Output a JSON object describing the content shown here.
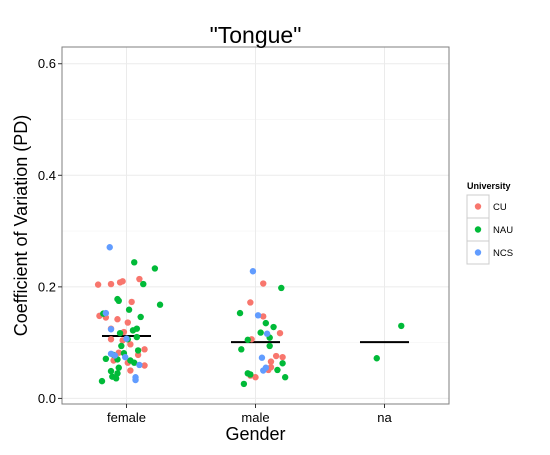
{
  "chart_data": {
    "type": "scatter",
    "title": "\"Tongue\"",
    "xlabel": "Gender",
    "ylabel": "Coefficient of Variation (PD)",
    "categories": [
      "female",
      "male",
      "na"
    ],
    "ylim": [
      -0.01,
      0.63
    ],
    "y_ticks": [
      0.0,
      0.2,
      0.4,
      0.6
    ],
    "y_tick_labels": [
      "0.0",
      "0.2",
      "0.4",
      "0.6"
    ],
    "grid": true,
    "legend": {
      "title": "University",
      "position": "right",
      "entries": [
        "CU",
        "NAU",
        "NCS"
      ]
    },
    "colors": {
      "CU": "#f8766d",
      "NAU": "#00ba38",
      "NCS": "#619cff",
      "panel_border": "#7f7f7f",
      "grid_major": "#ebebeb",
      "grid_minor": "#f5f5f5",
      "summary_line": "#000000"
    },
    "summary": [
      {
        "category": "female",
        "value": 0.112
      },
      {
        "category": "male",
        "value": 0.101
      },
      {
        "category": "na",
        "value": 0.101
      }
    ],
    "series": [
      {
        "name": "CU",
        "points": [
          {
            "x": "female",
            "jitter": -0.22,
            "y": 0.204
          },
          {
            "x": "female",
            "jitter": -0.12,
            "y": 0.205
          },
          {
            "x": "female",
            "jitter": -0.05,
            "y": 0.208
          },
          {
            "x": "female",
            "jitter": -0.03,
            "y": 0.21
          },
          {
            "x": "female",
            "jitter": 0.1,
            "y": 0.214
          },
          {
            "x": "female",
            "jitter": 0.04,
            "y": 0.173
          },
          {
            "x": "female",
            "jitter": -0.21,
            "y": 0.148
          },
          {
            "x": "female",
            "jitter": -0.16,
            "y": 0.145
          },
          {
            "x": "female",
            "jitter": -0.07,
            "y": 0.142
          },
          {
            "x": "female",
            "jitter": 0.01,
            "y": 0.136
          },
          {
            "x": "female",
            "jitter": -0.12,
            "y": 0.125
          },
          {
            "x": "female",
            "jitter": -0.02,
            "y": 0.119
          },
          {
            "x": "female",
            "jitter": -0.12,
            "y": 0.106
          },
          {
            "x": "female",
            "jitter": -0.03,
            "y": 0.104
          },
          {
            "x": "female",
            "jitter": 0.03,
            "y": 0.097
          },
          {
            "x": "female",
            "jitter": 0.14,
            "y": 0.088
          },
          {
            "x": "female",
            "jitter": -0.06,
            "y": 0.082
          },
          {
            "x": "female",
            "jitter": 0.09,
            "y": 0.078
          },
          {
            "x": "female",
            "jitter": -0.1,
            "y": 0.068
          },
          {
            "x": "female",
            "jitter": 0.01,
            "y": 0.064
          },
          {
            "x": "female",
            "jitter": 0.14,
            "y": 0.059
          },
          {
            "x": "female",
            "jitter": 0.03,
            "y": 0.05
          },
          {
            "x": "male",
            "jitter": 0.06,
            "y": 0.206
          },
          {
            "x": "male",
            "jitter": -0.04,
            "y": 0.172
          },
          {
            "x": "male",
            "jitter": 0.06,
            "y": 0.147
          },
          {
            "x": "male",
            "jitter": 0.19,
            "y": 0.117
          },
          {
            "x": "male",
            "jitter": -0.03,
            "y": 0.106
          },
          {
            "x": "male",
            "jitter": 0.16,
            "y": 0.076
          },
          {
            "x": "male",
            "jitter": 0.21,
            "y": 0.074
          },
          {
            "x": "male",
            "jitter": 0.12,
            "y": 0.066
          },
          {
            "x": "male",
            "jitter": 0.12,
            "y": 0.056
          },
          {
            "x": "male",
            "jitter": 0.1,
            "y": 0.051
          },
          {
            "x": "male",
            "jitter": -0.04,
            "y": 0.041
          },
          {
            "x": "male",
            "jitter": 0.0,
            "y": 0.038
          }
        ]
      },
      {
        "name": "NAU",
        "points": [
          {
            "x": "female",
            "jitter": 0.06,
            "y": 0.244
          },
          {
            "x": "female",
            "jitter": 0.22,
            "y": 0.233
          },
          {
            "x": "female",
            "jitter": 0.13,
            "y": 0.205
          },
          {
            "x": "female",
            "jitter": -0.07,
            "y": 0.178
          },
          {
            "x": "female",
            "jitter": -0.06,
            "y": 0.175
          },
          {
            "x": "female",
            "jitter": 0.26,
            "y": 0.168
          },
          {
            "x": "female",
            "jitter": 0.02,
            "y": 0.159
          },
          {
            "x": "female",
            "jitter": -0.18,
            "y": 0.152
          },
          {
            "x": "female",
            "jitter": 0.11,
            "y": 0.146
          },
          {
            "x": "female",
            "jitter": 0.08,
            "y": 0.125
          },
          {
            "x": "female",
            "jitter": 0.05,
            "y": 0.122
          },
          {
            "x": "female",
            "jitter": -0.05,
            "y": 0.117
          },
          {
            "x": "female",
            "jitter": 0.08,
            "y": 0.11
          },
          {
            "x": "female",
            "jitter": 0.01,
            "y": 0.106
          },
          {
            "x": "female",
            "jitter": -0.04,
            "y": 0.094
          },
          {
            "x": "female",
            "jitter": 0.09,
            "y": 0.086
          },
          {
            "x": "female",
            "jitter": -0.02,
            "y": 0.081
          },
          {
            "x": "female",
            "jitter": -0.1,
            "y": 0.078
          },
          {
            "x": "female",
            "jitter": -0.16,
            "y": 0.071
          },
          {
            "x": "female",
            "jitter": -0.07,
            "y": 0.07
          },
          {
            "x": "female",
            "jitter": 0.03,
            "y": 0.068
          },
          {
            "x": "female",
            "jitter": 0.06,
            "y": 0.064
          },
          {
            "x": "female",
            "jitter": -0.06,
            "y": 0.055
          },
          {
            "x": "female",
            "jitter": -0.12,
            "y": 0.049
          },
          {
            "x": "female",
            "jitter": -0.07,
            "y": 0.045
          },
          {
            "x": "female",
            "jitter": -0.11,
            "y": 0.039
          },
          {
            "x": "female",
            "jitter": -0.08,
            "y": 0.036
          },
          {
            "x": "female",
            "jitter": -0.19,
            "y": 0.031
          },
          {
            "x": "male",
            "jitter": 0.2,
            "y": 0.198
          },
          {
            "x": "male",
            "jitter": -0.12,
            "y": 0.153
          },
          {
            "x": "male",
            "jitter": 0.08,
            "y": 0.135
          },
          {
            "x": "male",
            "jitter": 0.14,
            "y": 0.128
          },
          {
            "x": "male",
            "jitter": 0.04,
            "y": 0.118
          },
          {
            "x": "male",
            "jitter": 0.11,
            "y": 0.109
          },
          {
            "x": "male",
            "jitter": -0.06,
            "y": 0.105
          },
          {
            "x": "male",
            "jitter": 0.11,
            "y": 0.094
          },
          {
            "x": "male",
            "jitter": -0.11,
            "y": 0.088
          },
          {
            "x": "male",
            "jitter": 0.21,
            "y": 0.063
          },
          {
            "x": "male",
            "jitter": 0.17,
            "y": 0.051
          },
          {
            "x": "male",
            "jitter": -0.06,
            "y": 0.045
          },
          {
            "x": "male",
            "jitter": -0.04,
            "y": 0.043
          },
          {
            "x": "male",
            "jitter": 0.23,
            "y": 0.038
          },
          {
            "x": "male",
            "jitter": -0.09,
            "y": 0.026
          },
          {
            "x": "na",
            "jitter": 0.13,
            "y": 0.13
          },
          {
            "x": "na",
            "jitter": -0.06,
            "y": 0.072
          }
        ]
      },
      {
        "name": "NCS",
        "points": [
          {
            "x": "female",
            "jitter": -0.13,
            "y": 0.271
          },
          {
            "x": "female",
            "jitter": -0.16,
            "y": 0.153
          },
          {
            "x": "female",
            "jitter": -0.12,
            "y": 0.124
          },
          {
            "x": "female",
            "jitter": 0.0,
            "y": 0.107
          },
          {
            "x": "female",
            "jitter": -0.12,
            "y": 0.08
          },
          {
            "x": "female",
            "jitter": -0.09,
            "y": 0.077
          },
          {
            "x": "female",
            "jitter": -0.01,
            "y": 0.074
          },
          {
            "x": "female",
            "jitter": 0.1,
            "y": 0.06
          },
          {
            "x": "female",
            "jitter": 0.07,
            "y": 0.038
          },
          {
            "x": "female",
            "jitter": 0.07,
            "y": 0.033
          },
          {
            "x": "male",
            "jitter": -0.02,
            "y": 0.228
          },
          {
            "x": "male",
            "jitter": 0.02,
            "y": 0.149
          },
          {
            "x": "male",
            "jitter": 0.09,
            "y": 0.116
          },
          {
            "x": "male",
            "jitter": 0.05,
            "y": 0.073
          },
          {
            "x": "male",
            "jitter": 0.08,
            "y": 0.055
          },
          {
            "x": "male",
            "jitter": 0.06,
            "y": 0.05
          }
        ]
      }
    ]
  }
}
